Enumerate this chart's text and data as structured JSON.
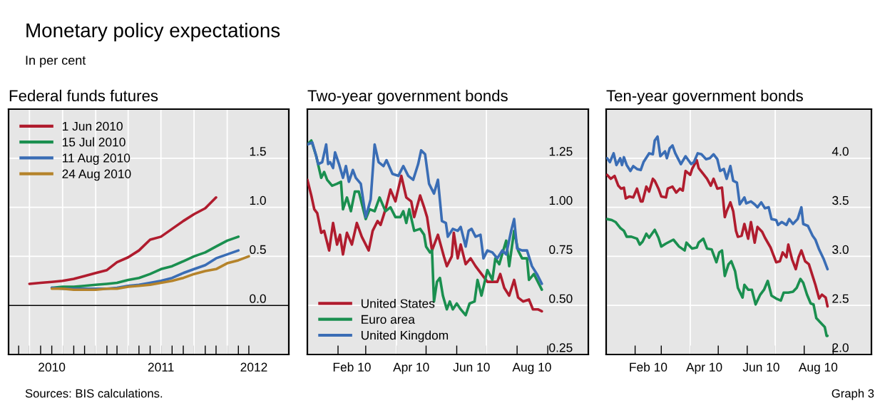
{
  "chart_data": [
    {
      "type": "line",
      "title": "Federal funds futures",
      "legend": "top left",
      "grid": "y",
      "xlim": [
        "2010-05-04",
        "2012-06-20"
      ],
      "ylim": [
        -0.5,
        2.0
      ],
      "yticks": [
        {
          "value": 0,
          "label": "0.0"
        },
        0.5,
        {
          "value": 1,
          "label": "1.0"
        },
        1.5
      ],
      "xticks": [
        {
          "value": "2010-06-01",
          "label": null
        },
        {
          "value": "2010-07-01",
          "label": null
        },
        {
          "value": "2010-08-01",
          "label": null
        },
        {
          "value": "2010-09-01",
          "label": null
        },
        {
          "value": "2010-10-01",
          "label": null
        },
        {
          "value": "2010-11-01",
          "label": null
        },
        {
          "value": "2010-12-01",
          "label": null
        },
        {
          "value": "2011-01-01",
          "label": null
        },
        {
          "value": "2011-02-01",
          "label": null
        },
        {
          "value": "2011-03-01",
          "label": null
        },
        {
          "value": "2011-04-01",
          "label": null
        },
        {
          "value": "2011-05-01",
          "label": null
        },
        {
          "value": "2011-06-01",
          "label": null
        },
        {
          "value": "2011-07-01",
          "label": null
        },
        {
          "value": "2011-08-01",
          "label": null
        },
        {
          "value": "2011-09-01",
          "label": null
        },
        {
          "value": "2011-10-01",
          "label": null
        },
        {
          "value": "2011-11-01",
          "label": null
        },
        {
          "value": "2011-12-01",
          "label": null
        },
        {
          "value": "2012-01-01",
          "label": null
        },
        {
          "value": "2012-02-01",
          "label": null
        },
        {
          "value": "2012-03-01",
          "label": null
        },
        {
          "value": "2010-09-01",
          "label": "2010"
        },
        {
          "value": "2011-07-01",
          "label": "2011"
        },
        {
          "value": "2012-03-15",
          "label": "2012"
        }
      ],
      "ref_lines": [
        {
          "axis": "x",
          "value": "2010-07-01",
          "color": "#ffffff"
        },
        {
          "axis": "x",
          "value": "2010-10-01",
          "color": "#ffffff"
        },
        {
          "axis": "x",
          "value": "2011-01-01",
          "color": "#ffffff"
        },
        {
          "axis": "x",
          "value": "2011-04-01",
          "color": "#ffffff"
        },
        {
          "axis": "x",
          "value": "2011-07-01",
          "color": "#ffffff"
        },
        {
          "axis": "x",
          "value": "2011-10-01",
          "color": "#ffffff"
        },
        {
          "axis": "x",
          "value": "2012-01-01",
          "color": "#ffffff"
        },
        {
          "axis": "y",
          "value": 0,
          "color": "#000000"
        }
      ],
      "series": [
        {
          "name": "1 Jun 2010",
          "color": "#b01c2e",
          "x": [
            "2010-07-01",
            "2010-08-01",
            "2010-09-01",
            "2010-10-01",
            "2010-11-01",
            "2010-12-01",
            "2011-01-01",
            "2011-02-01",
            "2011-03-01",
            "2011-04-01",
            "2011-05-01",
            "2011-06-01",
            "2011-07-01",
            "2011-08-01",
            "2011-09-01",
            "2011-10-01",
            "2011-11-01",
            "2011-12-01"
          ],
          "values": [
            0.22,
            0.23,
            0.24,
            0.25,
            0.27,
            0.3,
            0.33,
            0.36,
            0.44,
            0.49,
            0.56,
            0.67,
            0.7,
            0.78,
            0.86,
            0.93,
            0.99,
            1.1
          ]
        },
        {
          "name": "15 Jul 2010",
          "color": "#1a8f4f",
          "x": [
            "2010-09-01",
            "2010-10-01",
            "2010-11-01",
            "2010-12-01",
            "2011-01-01",
            "2011-02-01",
            "2011-03-01",
            "2011-04-01",
            "2011-05-01",
            "2011-06-01",
            "2011-07-01",
            "2011-08-01",
            "2011-09-01",
            "2011-10-01",
            "2011-11-01",
            "2011-12-01",
            "2012-01-01",
            "2012-02-01"
          ],
          "values": [
            0.18,
            0.19,
            0.19,
            0.2,
            0.21,
            0.22,
            0.23,
            0.26,
            0.28,
            0.32,
            0.37,
            0.4,
            0.45,
            0.5,
            0.54,
            0.6,
            0.66,
            0.7
          ]
        },
        {
          "name": "11 Aug 2010",
          "color": "#3a6db5",
          "x": [
            "2010-09-01",
            "2010-10-01",
            "2010-11-01",
            "2010-12-01",
            "2011-01-01",
            "2011-02-01",
            "2011-03-01",
            "2011-04-01",
            "2011-05-01",
            "2011-06-01",
            "2011-07-01",
            "2011-08-01",
            "2011-09-01",
            "2011-10-01",
            "2011-11-01",
            "2011-12-01",
            "2012-01-01",
            "2012-02-01"
          ],
          "values": [
            0.18,
            0.17,
            0.17,
            0.17,
            0.17,
            0.17,
            0.18,
            0.2,
            0.21,
            0.23,
            0.25,
            0.28,
            0.33,
            0.37,
            0.41,
            0.48,
            0.52,
            0.56
          ]
        },
        {
          "name": "24 Aug 2010",
          "color": "#b5832a",
          "x": [
            "2010-09-01",
            "2010-10-01",
            "2010-11-01",
            "2010-12-01",
            "2011-01-01",
            "2011-02-01",
            "2011-03-01",
            "2011-04-01",
            "2011-05-01",
            "2011-06-01",
            "2011-07-01",
            "2011-08-01",
            "2011-09-01",
            "2011-10-01",
            "2011-11-01",
            "2011-12-01",
            "2012-01-01",
            "2012-02-01",
            "2012-03-01"
          ],
          "values": [
            0.17,
            0.17,
            0.16,
            0.16,
            0.16,
            0.17,
            0.17,
            0.19,
            0.2,
            0.21,
            0.23,
            0.25,
            0.28,
            0.32,
            0.35,
            0.37,
            0.43,
            0.46,
            0.5
          ]
        }
      ]
    },
    {
      "type": "line",
      "title": "Two-year government bonds",
      "legend": "bottom left",
      "grid": "y",
      "xlim": [
        "2010-01-01",
        "2010-10-12"
      ],
      "ylim": [
        0.25,
        1.5
      ],
      "yticks": [
        {
          "value": 0.25,
          "label": "0.25"
        },
        {
          "value": 0.5,
          "label": "0.50"
        },
        {
          "value": 0.75,
          "label": "0.75"
        },
        {
          "value": 1.0,
          "label": "1.00"
        },
        {
          "value": 1.25,
          "label": "1.25"
        }
      ],
      "xticks": [
        {
          "value": "2010-02-01",
          "label": null
        },
        {
          "value": "2010-03-01",
          "label": null
        },
        {
          "value": "2010-04-01",
          "label": null
        },
        {
          "value": "2010-05-01",
          "label": null
        },
        {
          "value": "2010-06-01",
          "label": null
        },
        {
          "value": "2010-07-01",
          "label": null
        },
        {
          "value": "2010-08-01",
          "label": null
        },
        {
          "value": "2010-09-01",
          "label": null
        },
        {
          "value": "2010-02-15",
          "label": "Feb 10"
        },
        {
          "value": "2010-04-16",
          "label": "Apr 10"
        },
        {
          "value": "2010-06-16",
          "label": "Jun 10"
        },
        {
          "value": "2010-08-16",
          "label": "Aug 10"
        }
      ],
      "ref_lines": [
        {
          "axis": "x",
          "value": "2010-04-01",
          "color": "#ffffff"
        },
        {
          "axis": "x",
          "value": "2010-07-01",
          "color": "#ffffff"
        }
      ],
      "series": [
        {
          "name": "United States",
          "color": "#b01c2e",
          "x": [
            "2010-01-01",
            "2010-01-05",
            "2010-01-08",
            "2010-01-11",
            "2010-01-15",
            "2010-01-18",
            "2010-01-23",
            "2010-01-27",
            "2010-01-31",
            "2010-02-03",
            "2010-02-06",
            "2010-02-10",
            "2010-02-15",
            "2010-02-20",
            "2010-02-25",
            "2010-03-04",
            "2010-03-08",
            "2010-03-13",
            "2010-03-16",
            "2010-03-21",
            "2010-03-26",
            "2010-03-31",
            "2010-04-06",
            "2010-04-11",
            "2010-04-16",
            "2010-04-19",
            "2010-04-25",
            "2010-04-29",
            "2010-05-02",
            "2010-05-07",
            "2010-05-13",
            "2010-05-19",
            "2010-05-22",
            "2010-05-27",
            "2010-05-29",
            "2010-06-02",
            "2010-06-05",
            "2010-06-10",
            "2010-06-15",
            "2010-06-20",
            "2010-06-26",
            "2010-07-02",
            "2010-07-07",
            "2010-07-12",
            "2010-07-15",
            "2010-07-19",
            "2010-07-24",
            "2010-07-29",
            "2010-08-02",
            "2010-08-07",
            "2010-08-13",
            "2010-08-17",
            "2010-08-22",
            "2010-08-26"
          ],
          "values": [
            1.14,
            1.06,
            0.99,
            0.97,
            0.87,
            0.88,
            0.78,
            0.92,
            0.81,
            0.86,
            0.76,
            0.87,
            0.81,
            0.92,
            0.85,
            0.78,
            0.88,
            0.93,
            0.91,
            0.99,
            1.09,
            1.03,
            1.16,
            1.05,
            1.03,
            0.95,
            1.06,
            1.0,
            0.95,
            0.78,
            0.86,
            0.75,
            0.7,
            0.75,
            0.87,
            0.74,
            0.81,
            0.71,
            0.74,
            0.7,
            0.66,
            0.62,
            0.62,
            0.62,
            0.66,
            0.59,
            0.55,
            0.63,
            0.54,
            0.52,
            0.53,
            0.48,
            0.48,
            0.47
          ]
        },
        {
          "name": "Euro area",
          "color": "#1a8f4f",
          "x": [
            "2010-01-01",
            "2010-01-05",
            "2010-01-10",
            "2010-01-15",
            "2010-01-18",
            "2010-01-21",
            "2010-01-26",
            "2010-01-31",
            "2010-02-04",
            "2010-02-06",
            "2010-02-10",
            "2010-02-14",
            "2010-02-18",
            "2010-02-22",
            "2010-02-26",
            "2010-03-01",
            "2010-03-05",
            "2010-03-10",
            "2010-03-15",
            "2010-03-21",
            "2010-03-26",
            "2010-03-31",
            "2010-04-05",
            "2010-04-08",
            "2010-04-11",
            "2010-04-14",
            "2010-04-19",
            "2010-04-25",
            "2010-04-29",
            "2010-05-01",
            "2010-05-05",
            "2010-05-07",
            "2010-05-09",
            "2010-05-12",
            "2010-05-15",
            "2010-05-18",
            "2010-05-22",
            "2010-05-25",
            "2010-05-28",
            "2010-06-01",
            "2010-06-05",
            "2010-06-10",
            "2010-06-14",
            "2010-06-19",
            "2010-06-22",
            "2010-06-26",
            "2010-07-02",
            "2010-07-07",
            "2010-07-10",
            "2010-07-14",
            "2010-07-18",
            "2010-07-21",
            "2010-07-24",
            "2010-07-29",
            "2010-08-02",
            "2010-08-06",
            "2010-08-11",
            "2010-08-13",
            "2010-08-18",
            "2010-08-23",
            "2010-08-26"
          ],
          "values": [
            1.32,
            1.34,
            1.26,
            1.15,
            1.18,
            1.14,
            1.11,
            1.12,
            1.13,
            0.99,
            1.05,
            0.98,
            1.08,
            1.08,
            1.0,
            0.94,
            0.99,
            0.98,
            1.05,
            0.98,
            1.0,
            0.95,
            0.95,
            0.98,
            0.92,
            0.99,
            0.88,
            0.89,
            0.86,
            0.8,
            0.77,
            0.78,
            0.52,
            0.62,
            0.64,
            0.55,
            0.48,
            0.52,
            0.48,
            0.51,
            0.48,
            0.45,
            0.51,
            0.52,
            0.63,
            0.55,
            0.68,
            0.63,
            0.74,
            0.71,
            0.78,
            0.83,
            0.7,
            0.88,
            0.78,
            0.74,
            0.74,
            0.63,
            0.66,
            0.61,
            0.58
          ]
        },
        {
          "name": "United Kingdom",
          "color": "#3a6db5",
          "x": [
            "2010-01-01",
            "2010-01-06",
            "2010-01-10",
            "2010-01-12",
            "2010-01-16",
            "2010-01-20",
            "2010-01-22",
            "2010-01-24",
            "2010-01-27",
            "2010-01-29",
            "2010-02-02",
            "2010-02-06",
            "2010-02-09",
            "2010-02-12",
            "2010-02-16",
            "2010-02-19",
            "2010-02-24",
            "2010-03-01",
            "2010-03-06",
            "2010-03-10",
            "2010-03-14",
            "2010-03-19",
            "2010-03-22",
            "2010-03-28",
            "2010-04-03",
            "2010-04-08",
            "2010-04-13",
            "2010-04-18",
            "2010-04-23",
            "2010-04-26",
            "2010-04-30",
            "2010-05-04",
            "2010-05-09",
            "2010-05-13",
            "2010-05-17",
            "2010-05-21",
            "2010-05-23",
            "2010-05-28",
            "2010-06-02",
            "2010-06-05",
            "2010-06-10",
            "2010-06-13",
            "2010-06-16",
            "2010-06-20",
            "2010-06-25",
            "2010-06-28",
            "2010-07-02",
            "2010-07-07",
            "2010-07-12",
            "2010-07-17",
            "2010-07-21",
            "2010-07-26",
            "2010-07-29",
            "2010-08-01",
            "2010-08-06",
            "2010-08-11",
            "2010-08-16",
            "2010-08-21",
            "2010-08-23",
            "2010-08-26"
          ],
          "values": [
            1.32,
            1.33,
            1.26,
            1.22,
            1.23,
            1.32,
            1.22,
            1.23,
            1.2,
            1.28,
            1.22,
            1.15,
            1.21,
            1.13,
            1.19,
            1.15,
            1.12,
            0.95,
            1.04,
            1.32,
            1.23,
            1.21,
            1.24,
            1.17,
            1.16,
            1.21,
            1.16,
            1.14,
            1.22,
            1.29,
            1.27,
            1.12,
            1.07,
            1.14,
            0.93,
            0.92,
            0.85,
            0.89,
            0.88,
            0.9,
            0.8,
            0.88,
            0.89,
            0.85,
            0.86,
            0.74,
            0.78,
            0.77,
            0.74,
            0.78,
            0.76,
            0.88,
            0.94,
            0.79,
            0.78,
            0.78,
            0.7,
            0.66,
            0.64,
            0.61
          ]
        }
      ]
    },
    {
      "type": "line",
      "title": "Ten-year government bonds",
      "grid": "y",
      "xlim": [
        "2010-01-01",
        "2010-10-12"
      ],
      "ylim": [
        2.0,
        4.5
      ],
      "yticks": [
        {
          "value": 2.0,
          "label": "2.0"
        },
        2.5,
        {
          "value": 3.0,
          "label": "3.0"
        },
        3.5,
        {
          "value": 4.0,
          "label": "4.0"
        }
      ],
      "xticks": [
        {
          "value": "2010-02-01",
          "label": null
        },
        {
          "value": "2010-03-01",
          "label": null
        },
        {
          "value": "2010-04-01",
          "label": null
        },
        {
          "value": "2010-05-01",
          "label": null
        },
        {
          "value": "2010-06-01",
          "label": null
        },
        {
          "value": "2010-07-01",
          "label": null
        },
        {
          "value": "2010-08-01",
          "label": null
        },
        {
          "value": "2010-09-01",
          "label": null
        },
        {
          "value": "2010-02-15",
          "label": "Feb 10"
        },
        {
          "value": "2010-04-16",
          "label": "Apr 10"
        },
        {
          "value": "2010-06-16",
          "label": "Jun 10"
        },
        {
          "value": "2010-08-16",
          "label": "Aug 10"
        }
      ],
      "ref_lines": [
        {
          "axis": "x",
          "value": "2010-04-01",
          "color": "#ffffff"
        },
        {
          "axis": "x",
          "value": "2010-07-01",
          "color": "#ffffff"
        }
      ],
      "series": [
        {
          "color": "#b01c2e",
          "x": [
            "2010-01-02",
            "2010-01-06",
            "2010-01-10",
            "2010-01-14",
            "2010-01-17",
            "2010-01-20",
            "2010-01-22",
            "2010-01-26",
            "2010-01-30",
            "2010-02-03",
            "2010-02-07",
            "2010-02-09",
            "2010-02-13",
            "2010-02-16",
            "2010-02-20",
            "2010-02-22",
            "2010-02-26",
            "2010-03-01",
            "2010-03-06",
            "2010-03-08",
            "2010-03-13",
            "2010-03-17",
            "2010-03-21",
            "2010-03-24",
            "2010-03-27",
            "2010-04-01",
            "2010-04-03",
            "2010-04-08",
            "2010-04-10",
            "2010-04-15",
            "2010-04-19",
            "2010-04-23",
            "2010-04-26",
            "2010-04-30",
            "2010-05-05",
            "2010-05-08",
            "2010-05-10",
            "2010-05-14",
            "2010-05-17",
            "2010-05-20",
            "2010-05-22",
            "2010-05-26",
            "2010-05-29",
            "2010-06-02",
            "2010-06-05",
            "2010-06-09",
            "2010-06-12",
            "2010-06-17",
            "2010-06-20",
            "2010-06-26",
            "2010-07-02",
            "2010-07-06",
            "2010-07-09",
            "2010-07-13",
            "2010-07-15",
            "2010-07-19",
            "2010-07-23",
            "2010-07-26",
            "2010-07-29",
            "2010-08-02",
            "2010-08-06",
            "2010-08-10",
            "2010-08-13",
            "2010-08-17",
            "2010-08-20",
            "2010-08-24",
            "2010-08-26"
          ],
          "values": [
            3.83,
            3.79,
            3.82,
            3.72,
            3.69,
            3.7,
            3.59,
            3.61,
            3.6,
            3.69,
            3.56,
            3.56,
            3.71,
            3.66,
            3.79,
            3.77,
            3.69,
            3.61,
            3.6,
            3.69,
            3.71,
            3.65,
            3.69,
            3.67,
            3.87,
            3.83,
            3.89,
            3.98,
            3.9,
            3.84,
            3.79,
            3.72,
            3.79,
            3.69,
            3.7,
            3.4,
            3.46,
            3.55,
            3.46,
            3.26,
            3.2,
            3.21,
            3.33,
            3.18,
            3.35,
            3.14,
            3.3,
            3.25,
            3.19,
            3.09,
            2.94,
            2.95,
            3.04,
            2.99,
            3.12,
            2.97,
            2.87,
            2.99,
            3.06,
            2.95,
            2.92,
            2.8,
            2.71,
            2.57,
            2.61,
            2.58,
            2.49
          ]
        },
        {
          "color": "#1a8f4f",
          "x": [
            "2010-01-02",
            "2010-01-07",
            "2010-01-11",
            "2010-01-16",
            "2010-01-20",
            "2010-01-23",
            "2010-01-28",
            "2010-02-03",
            "2010-02-06",
            "2010-02-09",
            "2010-02-13",
            "2010-02-16",
            "2010-02-22",
            "2010-02-26",
            "2010-03-01",
            "2010-03-06",
            "2010-03-10",
            "2010-03-14",
            "2010-03-20",
            "2010-03-26",
            "2010-03-28",
            "2010-04-03",
            "2010-04-08",
            "2010-04-10",
            "2010-04-15",
            "2010-04-19",
            "2010-04-24",
            "2010-04-29",
            "2010-05-02",
            "2010-05-05",
            "2010-05-08",
            "2010-05-12",
            "2010-05-15",
            "2010-05-19",
            "2010-05-22",
            "2010-05-27",
            "2010-05-29",
            "2010-06-02",
            "2010-06-06",
            "2010-06-10",
            "2010-06-15",
            "2010-06-19",
            "2010-06-23",
            "2010-06-27",
            "2010-07-02",
            "2010-07-07",
            "2010-07-10",
            "2010-07-15",
            "2010-07-20",
            "2010-07-24",
            "2010-07-28",
            "2010-07-31",
            "2010-08-04",
            "2010-08-08",
            "2010-08-11",
            "2010-08-14",
            "2010-08-19",
            "2010-08-23",
            "2010-08-25",
            "2010-08-26"
          ],
          "values": [
            3.38,
            3.37,
            3.35,
            3.29,
            3.26,
            3.2,
            3.2,
            3.18,
            3.12,
            3.15,
            3.23,
            3.19,
            3.27,
            3.19,
            3.1,
            3.13,
            3.15,
            3.17,
            3.1,
            3.06,
            3.14,
            3.08,
            3.09,
            3.14,
            3.18,
            3.08,
            3.07,
            2.94,
            3.04,
            3.06,
            2.8,
            2.92,
            2.95,
            2.85,
            2.68,
            2.58,
            2.71,
            2.66,
            2.66,
            2.51,
            2.61,
            2.66,
            2.75,
            2.6,
            2.57,
            2.55,
            2.63,
            2.63,
            2.64,
            2.68,
            2.77,
            2.73,
            2.61,
            2.52,
            2.51,
            2.37,
            2.32,
            2.28,
            2.19,
            2.19
          ]
        },
        {
          "color": "#3a6db5",
          "x": [
            "2010-01-02",
            "2010-01-05",
            "2010-01-09",
            "2010-01-12",
            "2010-01-16",
            "2010-01-18",
            "2010-01-20",
            "2010-01-23",
            "2010-01-27",
            "2010-01-30",
            "2010-02-03",
            "2010-02-07",
            "2010-02-10",
            "2010-02-16",
            "2010-02-20",
            "2010-02-22",
            "2010-02-25",
            "2010-02-28",
            "2010-03-05",
            "2010-03-07",
            "2010-03-10",
            "2010-03-13",
            "2010-03-16",
            "2010-03-22",
            "2010-03-27",
            "2010-04-02",
            "2010-04-05",
            "2010-04-09",
            "2010-04-13",
            "2010-04-18",
            "2010-04-22",
            "2010-04-26",
            "2010-04-30",
            "2010-05-03",
            "2010-05-07",
            "2010-05-10",
            "2010-05-14",
            "2010-05-17",
            "2010-05-21",
            "2010-05-24",
            "2010-05-29",
            "2010-05-31",
            "2010-06-05",
            "2010-06-09",
            "2010-06-12",
            "2010-06-16",
            "2010-06-20",
            "2010-06-24",
            "2010-06-27",
            "2010-07-02",
            "2010-07-04",
            "2010-07-08",
            "2010-07-13",
            "2010-07-16",
            "2010-07-20",
            "2010-07-25",
            "2010-07-29",
            "2010-07-31",
            "2010-08-05",
            "2010-08-10",
            "2010-08-13",
            "2010-08-17",
            "2010-08-22",
            "2010-08-26"
          ],
          "values": [
            4.0,
            3.96,
            4.05,
            3.93,
            4.0,
            3.93,
            4.01,
            3.93,
            3.87,
            3.92,
            3.89,
            3.88,
            3.96,
            4.05,
            4.04,
            4.18,
            4.22,
            4.02,
            4.07,
            4.0,
            4.1,
            4.13,
            4.05,
            3.94,
            4.02,
            3.94,
            3.96,
            4.05,
            4.04,
            3.99,
            4.0,
            4.04,
            3.99,
            3.87,
            3.89,
            3.79,
            3.92,
            3.77,
            3.75,
            3.53,
            3.6,
            3.54,
            3.56,
            3.53,
            3.5,
            3.55,
            3.49,
            3.5,
            3.38,
            3.37,
            3.32,
            3.35,
            3.32,
            3.38,
            3.33,
            3.38,
            3.5,
            3.33,
            3.31,
            3.21,
            3.17,
            3.07,
            2.97,
            2.87
          ]
        }
      ]
    },
    {
      "type": "other",
      "title": "Monetary policy expectations",
      "subtitle": "In per cent",
      "annotations": [
        "Sources: BIS calculations.",
        "Graph 3"
      ]
    }
  ]
}
